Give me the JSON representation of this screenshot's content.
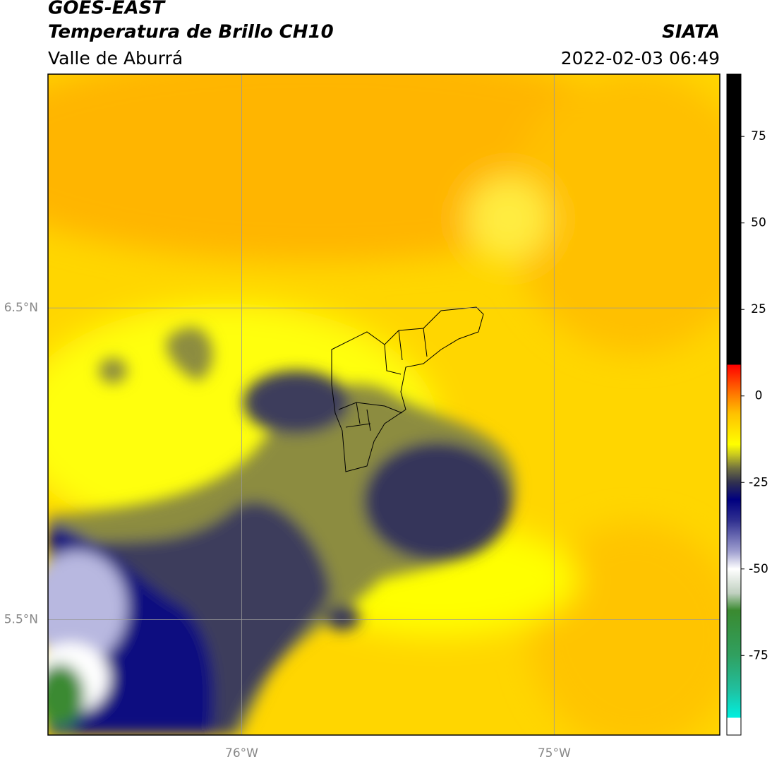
{
  "header": {
    "title": "GOES-EAST",
    "subtitle": "Temperatura de Brillo CH10",
    "region": "Valle de Aburrá",
    "source": "SIATA",
    "datetime": "2022-02-03 06:49"
  },
  "map": {
    "xlim": [
      -76.62,
      -74.47
    ],
    "ylim": [
      5.13,
      7.25
    ],
    "xticks": [
      {
        "value": -76,
        "label": "76°W"
      },
      {
        "value": -75,
        "label": "75°W"
      }
    ],
    "yticks": [
      {
        "value": 6.5,
        "label": "6.5°N"
      },
      {
        "value": 5.5,
        "label": "5.5°N"
      }
    ],
    "grid": true
  },
  "colorbar": {
    "lim": [
      -98,
      93
    ],
    "ticks": [
      -75,
      -50,
      -25,
      0,
      25,
      50,
      75
    ],
    "stops": [
      {
        "value": -98,
        "color": "#ffffff"
      },
      {
        "value": -93,
        "color": "#ffffff"
      },
      {
        "value": -93,
        "color": "#00f0e0"
      },
      {
        "value": -85,
        "color": "#20c0a0"
      },
      {
        "value": -75,
        "color": "#30a060"
      },
      {
        "value": -62,
        "color": "#3a8a30"
      },
      {
        "value": -57,
        "color": "#c0d0c0"
      },
      {
        "value": -50,
        "color": "#ffffff"
      },
      {
        "value": -45,
        "color": "#a0a0d0"
      },
      {
        "value": -36,
        "color": "#303090"
      },
      {
        "value": -30,
        "color": "#000080"
      },
      {
        "value": -25,
        "color": "#303050"
      },
      {
        "value": -21,
        "color": "#707040"
      },
      {
        "value": -17,
        "color": "#c8c820"
      },
      {
        "value": -14,
        "color": "#ffff00"
      },
      {
        "value": -5,
        "color": "#ffc000"
      },
      {
        "value": 0,
        "color": "#ff8000"
      },
      {
        "value": 9,
        "color": "#ff0000"
      },
      {
        "value": 9,
        "color": "#000000"
      },
      {
        "value": 93,
        "color": "#000000"
      }
    ]
  }
}
